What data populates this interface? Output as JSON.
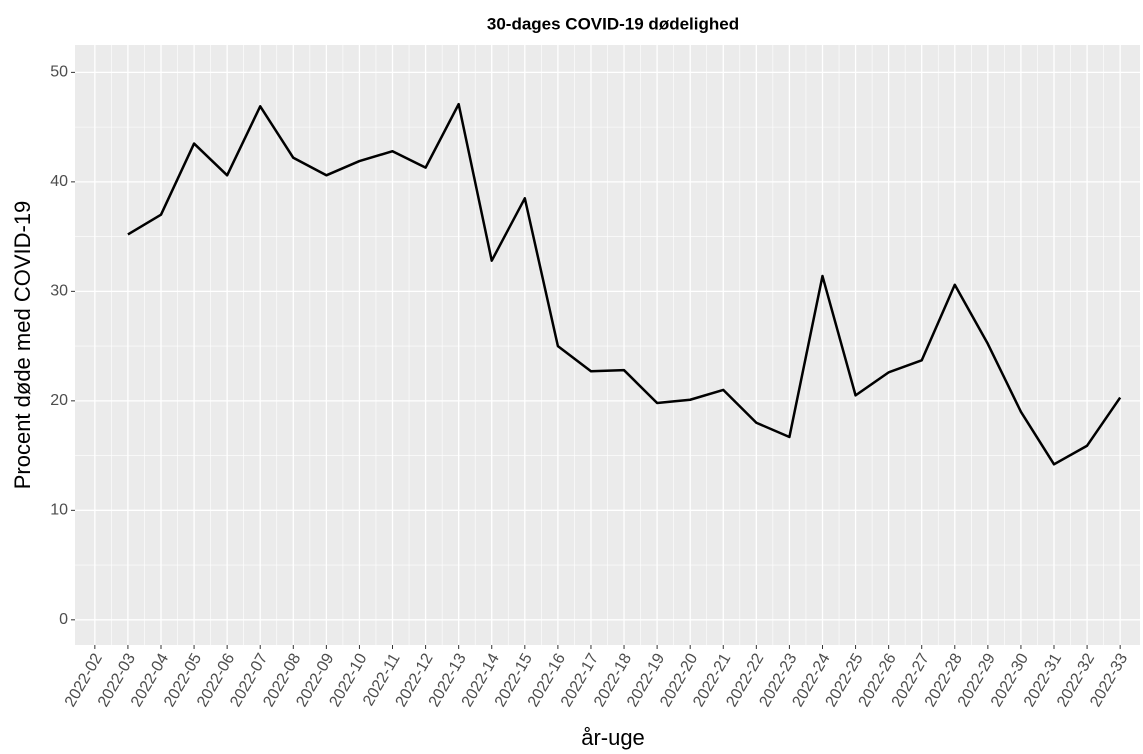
{
  "chart_data": {
    "type": "line",
    "title": "30-dages COVID-19 dødelighed",
    "x_label": "år-uge",
    "y_label": "Procent døde med COVID-19",
    "categories": [
      "2022-02",
      "2022-03",
      "2022-04",
      "2022-05",
      "2022-06",
      "2022-07",
      "2022-08",
      "2022-09",
      "2022-10",
      "2022-11",
      "2022-12",
      "2022-13",
      "2022-14",
      "2022-15",
      "2022-16",
      "2022-17",
      "2022-18",
      "2022-19",
      "2022-20",
      "2022-21",
      "2022-22",
      "2022-23",
      "2022-24",
      "2022-25",
      "2022-26",
      "2022-27",
      "2022-28",
      "2022-29",
      "2022-30",
      "2022-31",
      "2022-32",
      "2022-33"
    ],
    "series": [
      {
        "name": "Procent døde med COVID-19",
        "color": "#000000",
        "values": [
          null,
          35.2,
          37.0,
          43.5,
          40.6,
          46.9,
          42.2,
          40.6,
          41.9,
          42.8,
          41.3,
          47.1,
          32.8,
          38.5,
          25.0,
          22.7,
          22.8,
          19.8,
          20.1,
          21.0,
          18.0,
          16.7,
          31.4,
          20.5,
          22.6,
          23.7,
          30.6,
          25.2,
          19.0,
          14.2,
          15.9,
          20.3
        ]
      }
    ],
    "ylim": [
      -2.3,
      52.5
    ],
    "yticks": [
      0,
      10,
      20,
      30,
      40,
      50
    ],
    "grid": true
  }
}
